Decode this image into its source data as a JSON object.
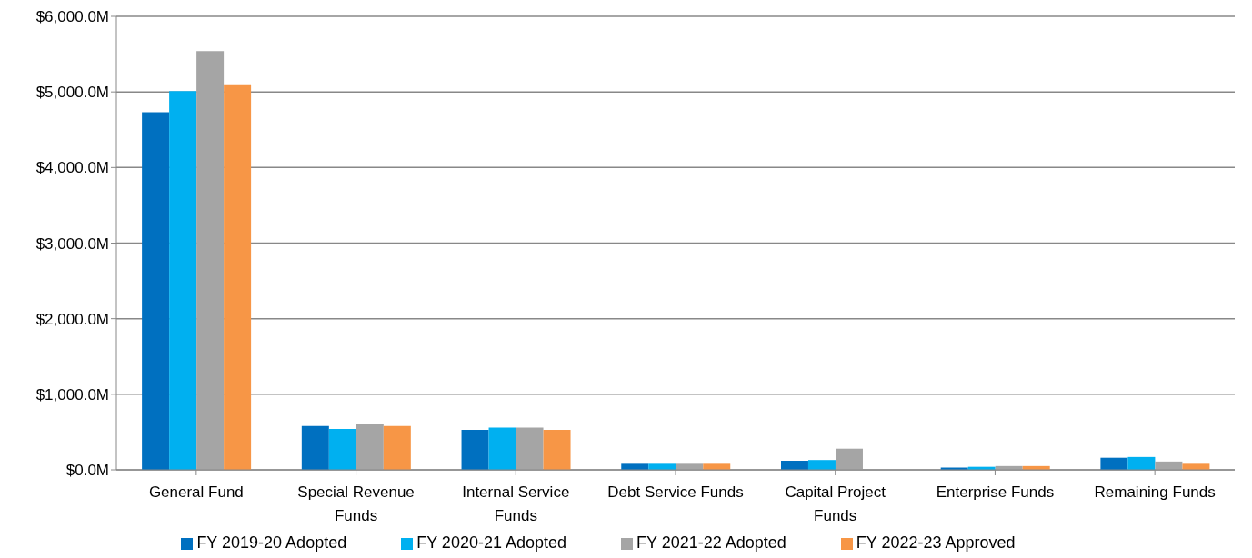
{
  "chart_data": {
    "type": "bar",
    "categories": [
      "General Fund",
      "Special Revenue Funds",
      "Internal Service Funds",
      "Debt Service Funds",
      "Capital Project Funds",
      "Enterprise Funds",
      "Remaining Funds"
    ],
    "series": [
      {
        "name": "FY 2019-20 Adopted",
        "color": "#0070c0",
        "values": [
          4730,
          580,
          530,
          80,
          120,
          30,
          160
        ]
      },
      {
        "name": "FY 2020-21 Adopted",
        "color": "#00b0f0",
        "values": [
          5010,
          540,
          560,
          80,
          130,
          40,
          170
        ]
      },
      {
        "name": "FY 2021-22 Adopted",
        "color": "#a5a5a5",
        "values": [
          5540,
          600,
          560,
          80,
          280,
          50,
          110
        ]
      },
      {
        "name": "FY 2022-23 Approved",
        "color": "#f79646",
        "values": [
          5100,
          580,
          530,
          80,
          0,
          50,
          80
        ]
      }
    ],
    "ylim": [
      0,
      6000
    ],
    "yticks": [
      {
        "value": 0,
        "label": "$0.0M"
      },
      {
        "value": 1000,
        "label": "$1,000.0M"
      },
      {
        "value": 2000,
        "label": "$2,000.0M"
      },
      {
        "value": 3000,
        "label": "$3,000.0M"
      },
      {
        "value": 4000,
        "label": "$4,000.0M"
      },
      {
        "value": 5000,
        "label": "$5,000.0M"
      },
      {
        "value": 6000,
        "label": "$6,000.0M"
      }
    ],
    "grid": "y",
    "legend": "bottom"
  }
}
